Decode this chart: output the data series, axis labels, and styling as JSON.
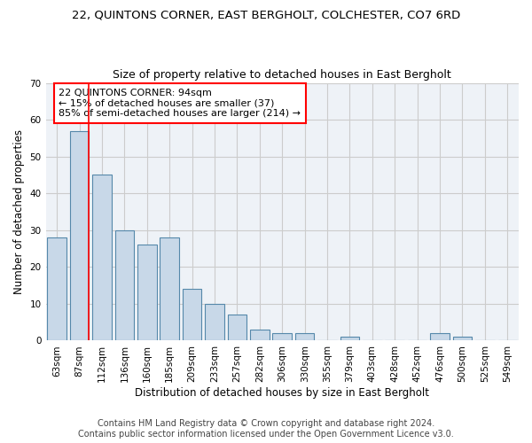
{
  "title": "22, QUINTONS CORNER, EAST BERGHOLT, COLCHESTER, CO7 6RD",
  "subtitle": "Size of property relative to detached houses in East Bergholt",
  "xlabel": "Distribution of detached houses by size in East Bergholt",
  "ylabel": "Number of detached properties",
  "categories": [
    "63sqm",
    "87sqm",
    "112sqm",
    "136sqm",
    "160sqm",
    "185sqm",
    "209sqm",
    "233sqm",
    "257sqm",
    "282sqm",
    "306sqm",
    "330sqm",
    "355sqm",
    "379sqm",
    "403sqm",
    "428sqm",
    "452sqm",
    "476sqm",
    "500sqm",
    "525sqm",
    "549sqm"
  ],
  "values": [
    28,
    57,
    45,
    30,
    26,
    28,
    14,
    10,
    7,
    3,
    2,
    2,
    0,
    1,
    0,
    0,
    0,
    2,
    1,
    0,
    0
  ],
  "bar_color": "#c8d8e8",
  "bar_edge_color": "#5588aa",
  "annotation_line_color": "red",
  "annotation_box_text": "22 QUINTONS CORNER: 94sqm\n← 15% of detached houses are smaller (37)\n85% of semi-detached houses are larger (214) →",
  "annotation_box_color": "white",
  "annotation_box_edge_color": "red",
  "ylim": [
    0,
    70
  ],
  "yticks": [
    0,
    10,
    20,
    30,
    40,
    50,
    60,
    70
  ],
  "footnote": "Contains HM Land Registry data © Crown copyright and database right 2024.\nContains public sector information licensed under the Open Government Licence v3.0.",
  "bg_color": "#eef2f7",
  "grid_color": "#cccccc",
  "title_fontsize": 9.5,
  "subtitle_fontsize": 9,
  "axis_label_fontsize": 8.5,
  "tick_fontsize": 7.5,
  "annotation_fontsize": 8,
  "footnote_fontsize": 7
}
